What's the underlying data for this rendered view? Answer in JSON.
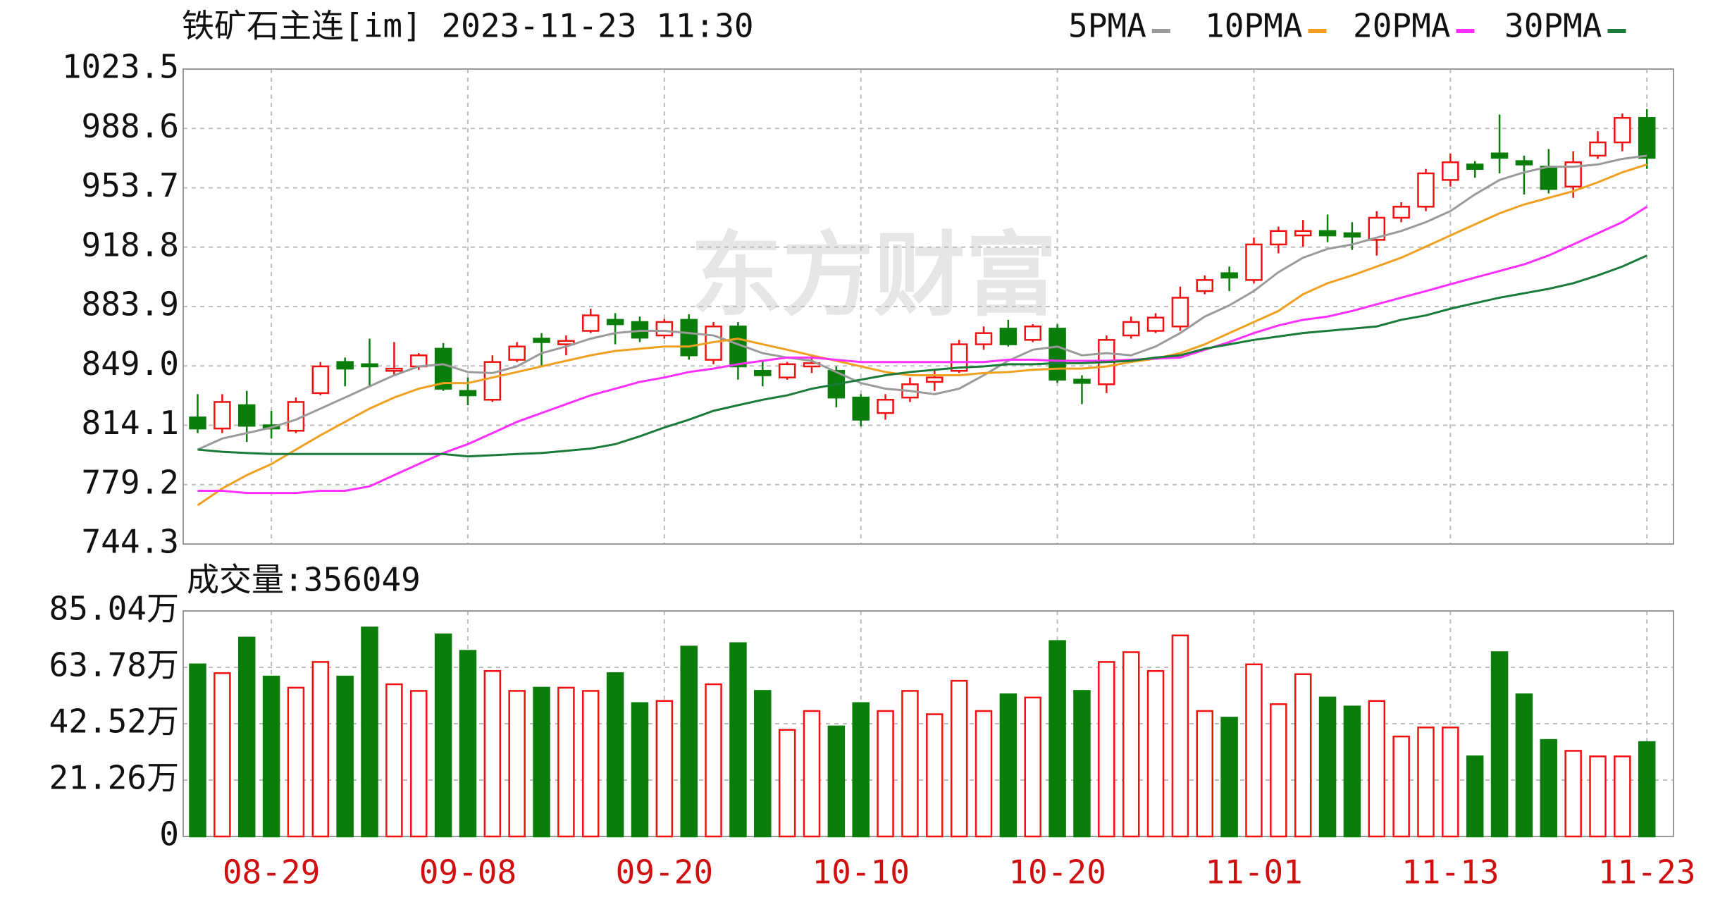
{
  "chart_data": [
    {
      "type": "candlestick",
      "title": "铁矿石主连[im] 2023-11-23 11:30",
      "watermark": "东方财富",
      "up_color": "#f01010",
      "down_color": "#0a7d0a",
      "open": [
        818.7,
        812.2,
        825.9,
        814.1,
        810.9,
        833.0,
        851.3,
        850.0,
        846.1,
        848.7,
        859.1,
        834.3,
        829.1,
        852.6,
        865.0,
        861.7,
        869.6,
        876.1,
        874.8,
        866.9,
        876.1,
        852.6,
        872.2,
        846.1,
        842.2,
        848.7,
        846.1,
        830.4,
        821.3,
        830.4,
        839.6,
        846.1,
        861.7,
        870.9,
        864.3,
        870.9,
        840.9,
        838.2,
        866.9,
        869.6,
        872.2,
        893.0,
        903.5,
        899.5,
        920.4,
        925.7,
        928.3,
        927.0,
        923.1,
        936.1,
        942.6,
        958.3,
        967.4,
        973.9,
        969.4,
        966.1,
        954.4,
        972.6,
        980.4,
        994.8
      ],
      "high": [
        832.4,
        832.4,
        834.3,
        822.6,
        830.4,
        851.3,
        853.9,
        865.0,
        863.0,
        856.5,
        862.4,
        842.2,
        855.2,
        863.0,
        868.3,
        866.9,
        882.6,
        880.0,
        878.0,
        876.7,
        879.4,
        874.8,
        874.8,
        852.0,
        851.3,
        855.2,
        848.7,
        832.4,
        832.4,
        842.2,
        846.7,
        864.3,
        872.2,
        876.1,
        873.5,
        873.5,
        843.5,
        866.9,
        878.0,
        880.0,
        895.6,
        902.2,
        907.4,
        924.4,
        930.9,
        934.8,
        938.0,
        933.5,
        940.0,
        945.2,
        964.8,
        973.9,
        969.4,
        996.8,
        972.6,
        976.5,
        975.2,
        987.0,
        997.4,
        1000.0
      ],
      "low": [
        809.5,
        809.5,
        804.3,
        806.3,
        809.5,
        831.7,
        837.0,
        837.0,
        843.5,
        846.7,
        834.3,
        825.9,
        827.8,
        851.3,
        848.7,
        855.2,
        868.3,
        861.7,
        863.0,
        865.0,
        852.6,
        850.0,
        840.9,
        837.0,
        840.9,
        844.8,
        824.6,
        813.5,
        817.4,
        827.8,
        834.3,
        844.8,
        858.5,
        860.4,
        863.0,
        839.0,
        826.5,
        833.0,
        865.0,
        868.3,
        869.6,
        891.1,
        893.0,
        897.6,
        915.2,
        919.1,
        921.7,
        917.2,
        913.9,
        933.5,
        940.0,
        954.4,
        959.6,
        962.2,
        949.8,
        950.4,
        947.8,
        970.7,
        975.2,
        964.8
      ],
      "close": [
        812.2,
        827.8,
        813.8,
        812.2,
        827.8,
        848.7,
        847.4,
        848.7,
        847.4,
        855.2,
        835.6,
        831.7,
        851.3,
        860.4,
        863.0,
        863.7,
        878.7,
        873.5,
        865.6,
        874.8,
        855.2,
        872.2,
        848.7,
        843.5,
        850.0,
        850.6,
        830.4,
        817.4,
        829.1,
        838.2,
        842.2,
        861.7,
        868.3,
        861.7,
        872.2,
        840.9,
        839.0,
        864.3,
        874.8,
        877.4,
        889.1,
        899.5,
        900.9,
        920.4,
        928.3,
        928.3,
        925.7,
        925.0,
        936.1,
        942.6,
        962.2,
        968.7,
        964.8,
        971.3,
        967.4,
        953.0,
        968.7,
        980.4,
        994.8,
        971.3
      ],
      "series": [
        {
          "name": "5PMA",
          "color": "#9a9a9a",
          "values": [
            799.8,
            806.3,
            809.5,
            812.8,
            817.4,
            823.9,
            830.4,
            837.0,
            843.5,
            848.7,
            850.0,
            845.4,
            844.8,
            848.7,
            856.5,
            860.4,
            865.0,
            868.3,
            869.6,
            869.6,
            868.3,
            866.9,
            861.7,
            856.5,
            853.9,
            852.0,
            845.4,
            838.9,
            835.6,
            834.3,
            832.4,
            835.6,
            843.5,
            852.0,
            858.5,
            860.4,
            855.2,
            856.5,
            855.2,
            860.4,
            868.3,
            878.0,
            884.6,
            893.0,
            904.1,
            912.6,
            917.8,
            920.4,
            924.4,
            928.3,
            933.5,
            940.0,
            949.8,
            958.3,
            962.8,
            966.1,
            966.1,
            967.4,
            970.7,
            972.6
          ]
        },
        {
          "name": "10PMA",
          "color": "#f0a020",
          "values": [
            767.1,
            776.9,
            784.8,
            791.3,
            799.8,
            808.2,
            816.1,
            823.9,
            830.4,
            835.6,
            838.9,
            838.9,
            842.2,
            845.4,
            848.7,
            852.0,
            855.2,
            857.8,
            859.1,
            860.4,
            860.4,
            863.0,
            865.0,
            861.7,
            858.5,
            855.2,
            852.0,
            848.7,
            845.4,
            843.5,
            843.5,
            843.5,
            844.8,
            845.4,
            846.7,
            847.4,
            847.4,
            848.7,
            851.3,
            853.3,
            856.5,
            861.7,
            868.3,
            874.8,
            881.3,
            891.1,
            897.6,
            902.2,
            907.4,
            912.6,
            919.1,
            925.7,
            932.2,
            938.7,
            943.9,
            947.8,
            951.7,
            956.9,
            962.8,
            967.4
          ]
        },
        {
          "name": "20PMA",
          "color": "#ff30ff",
          "values": [
            775.6,
            775.6,
            774.3,
            774.3,
            774.3,
            775.6,
            775.6,
            778.2,
            784.8,
            791.3,
            797.8,
            803.0,
            809.5,
            816.1,
            821.3,
            826.5,
            831.7,
            835.6,
            839.6,
            842.2,
            845.4,
            847.4,
            850.0,
            852.0,
            853.9,
            853.9,
            852.6,
            851.3,
            851.3,
            851.3,
            851.3,
            851.3,
            851.3,
            852.6,
            852.6,
            852.0,
            852.0,
            852.0,
            852.6,
            853.3,
            853.9,
            858.5,
            863.0,
            868.3,
            872.8,
            876.1,
            878.0,
            881.3,
            885.2,
            889.1,
            893.0,
            897.0,
            900.9,
            904.8,
            908.7,
            913.9,
            920.4,
            927.0,
            933.5,
            942.6
          ]
        },
        {
          "name": "30PMA",
          "color": "#1a7a3a",
          "values": [
            799.8,
            798.5,
            797.8,
            797.2,
            797.2,
            797.2,
            797.2,
            797.2,
            797.2,
            797.2,
            797.2,
            795.8,
            796.5,
            797.2,
            797.8,
            799.1,
            800.4,
            803.0,
            807.6,
            812.8,
            817.4,
            822.6,
            825.9,
            829.1,
            831.7,
            835.6,
            838.2,
            840.9,
            843.5,
            845.4,
            846.7,
            848.0,
            848.7,
            850.0,
            850.0,
            850.6,
            850.6,
            851.3,
            852.0,
            853.9,
            855.2,
            859.1,
            861.7,
            864.3,
            866.3,
            868.3,
            869.6,
            870.9,
            872.2,
            876.1,
            878.7,
            882.6,
            885.9,
            889.1,
            891.7,
            894.3,
            897.6,
            902.2,
            907.4,
            913.9
          ]
        }
      ],
      "ylim": [
        744.3,
        1023.5
      ],
      "yticks": [
        744.3,
        779.2,
        814.1,
        {
          "value": 849,
          "label": "849.0"
        },
        883.9,
        918.8,
        953.7,
        988.6,
        1023.5
      ],
      "grid": true
    },
    {
      "type": "bar",
      "title": "成交量:356049",
      "categories": [
        null,
        null,
        null,
        "08-29",
        null,
        null,
        null,
        null,
        null,
        null,
        null,
        "09-08",
        null,
        null,
        null,
        null,
        null,
        null,
        null,
        "09-20",
        null,
        null,
        null,
        null,
        null,
        null,
        null,
        "10-10",
        null,
        null,
        null,
        null,
        null,
        null,
        null,
        "10-20",
        null,
        null,
        null,
        null,
        null,
        null,
        null,
        "11-01",
        null,
        null,
        null,
        null,
        null,
        null,
        null,
        "11-13",
        null,
        null,
        null,
        null,
        null,
        null,
        null,
        "11-23"
      ],
      "values": [
        64.9,
        61.6,
        75.0,
        60.3,
        56.1,
        65.8,
        60.3,
        78.8,
        57.4,
        54.9,
        76.2,
        70.0,
        62.4,
        54.9,
        56.1,
        56.1,
        54.9,
        61.6,
        50.3,
        51.1,
        71.6,
        57.4,
        72.9,
        54.9,
        40.2,
        47.3,
        41.5,
        50.3,
        47.3,
        54.9,
        46.1,
        58.7,
        47.3,
        53.6,
        52.4,
        73.7,
        54.9,
        65.8,
        69.5,
        62.4,
        75.8,
        47.3,
        44.8,
        64.9,
        49.9,
        61.2,
        52.4,
        49.0,
        51.1,
        37.7,
        41.1,
        41.1,
        30.2,
        69.5,
        53.6,
        36.4,
        32.3,
        30.2,
        30.2,
        35.6
      ],
      "ylim": [
        0,
        85.04
      ],
      "yticks": [
        0,
        {
          "value": 21.26,
          "label": "21.26万"
        },
        {
          "value": 42.52,
          "label": "42.52万"
        },
        {
          "value": 63.78,
          "label": "63.78万"
        },
        {
          "value": 85.04,
          "label": "85.04万"
        }
      ],
      "grid": true
    }
  ]
}
